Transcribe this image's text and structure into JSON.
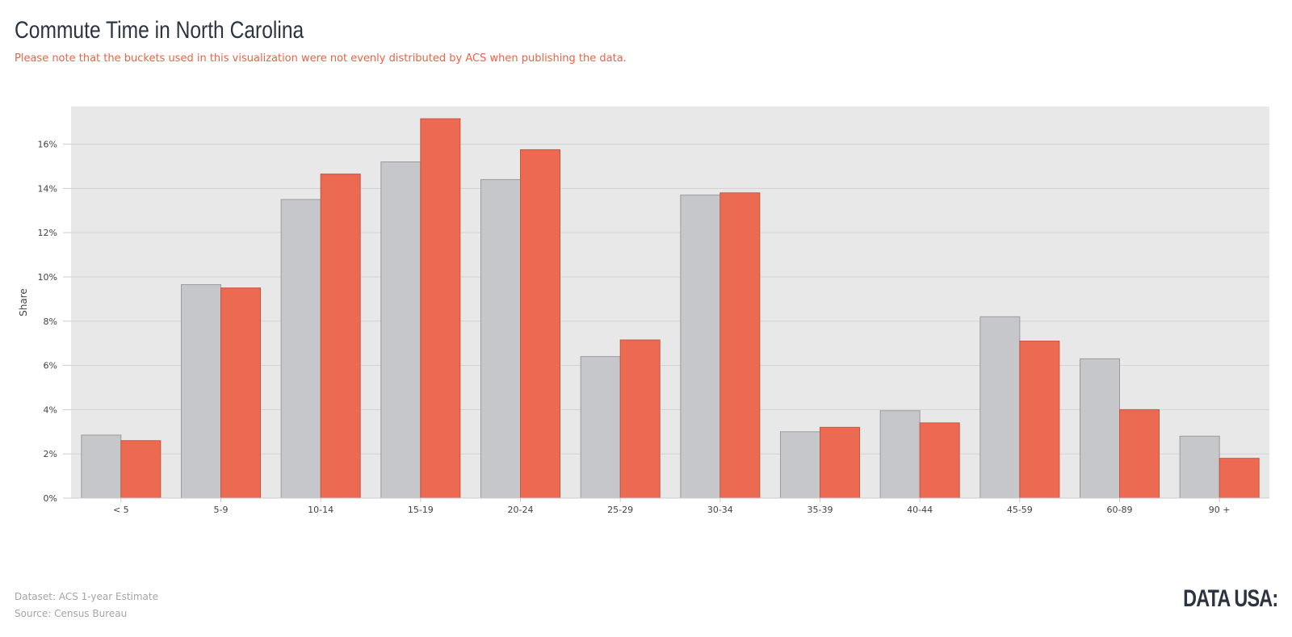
{
  "page": {
    "title": "Commute Time in North Carolina",
    "subtitle": "Please note that the buckets used in this visualization were not evenly distributed by ACS when publishing the data.",
    "footer": {
      "dataset": "Dataset: ACS 1-year Estimate",
      "source": "Source: Census Bureau"
    },
    "logo": "DATA USA:"
  },
  "colors": {
    "background": "#e8e8e8",
    "gridline": "#d2d2d2",
    "series_gray": "#c6c7cb",
    "series_gray_stroke": "#9a9b9f",
    "series_red": "#ec6a52",
    "series_red_stroke": "#c8553f",
    "accent": "#ef6145"
  },
  "chart_data": {
    "type": "bar",
    "title": "Commute Time in North Carolina",
    "xlabel": "",
    "ylabel": "Share",
    "categories": [
      "< 5",
      "5-9",
      "10-14",
      "15-19",
      "20-24",
      "25-29",
      "30-34",
      "35-39",
      "40-44",
      "45-59",
      "60-89",
      "90 +"
    ],
    "series": [
      {
        "color": "#c6c7cb",
        "values": [
          2.85,
          9.65,
          13.5,
          15.2,
          14.4,
          6.4,
          13.7,
          3.0,
          3.95,
          8.2,
          6.3,
          2.8
        ]
      },
      {
        "color": "#ec6a52",
        "values": [
          2.6,
          9.5,
          14.65,
          17.15,
          15.75,
          7.15,
          13.8,
          3.2,
          3.4,
          7.1,
          4.0,
          1.8
        ]
      }
    ],
    "ylim": [
      0,
      17.7
    ],
    "yticks": [
      0,
      2,
      4,
      6,
      8,
      10,
      12,
      14,
      16
    ],
    "ytick_labels": [
      "0%",
      "2%",
      "4%",
      "6%",
      "8%",
      "10%",
      "12%",
      "14%",
      "16%"
    ],
    "grid": true,
    "legend": "none"
  }
}
